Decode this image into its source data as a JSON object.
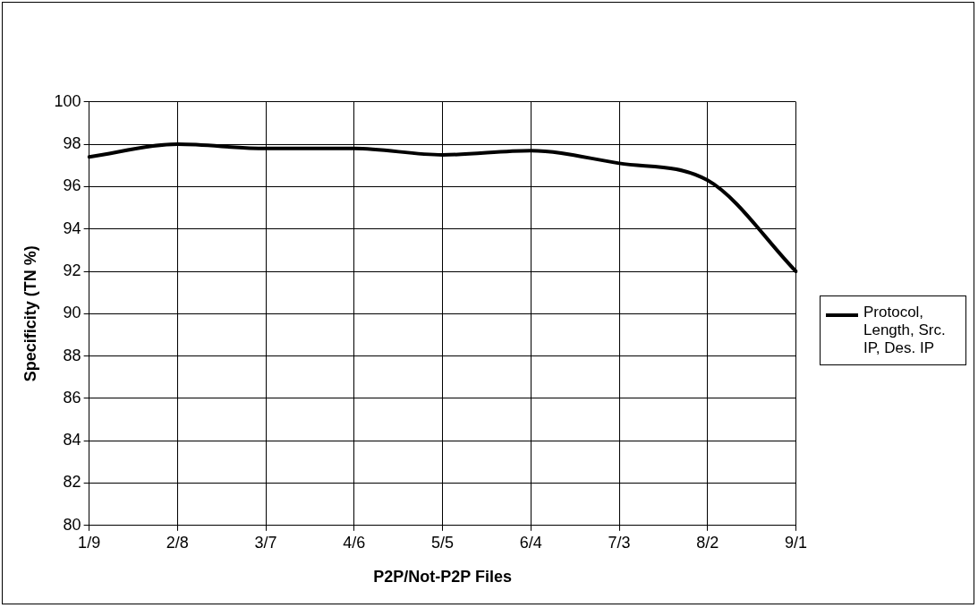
{
  "chart_data": {
    "type": "line",
    "xlabel": "P2P/Not-P2P Files",
    "ylabel": "Specificity (TN %)",
    "categories": [
      "1/9",
      "2/8",
      "3/7",
      "4/6",
      "5/5",
      "6/4",
      "7/3",
      "8/2",
      "9/1"
    ],
    "series": [
      {
        "name": "Protocol, Length, Src. IP, Des. IP",
        "color": "#000000",
        "values": [
          97.4,
          98.0,
          97.8,
          97.8,
          97.5,
          97.7,
          97.1,
          96.3,
          92.0
        ]
      }
    ],
    "ylim": [
      80,
      100
    ],
    "yticks": [
      80,
      82,
      84,
      86,
      88,
      90,
      92,
      94,
      96,
      98,
      100
    ],
    "grid": true,
    "legend": "right",
    "marker": "none",
    "line_style": "solid"
  }
}
